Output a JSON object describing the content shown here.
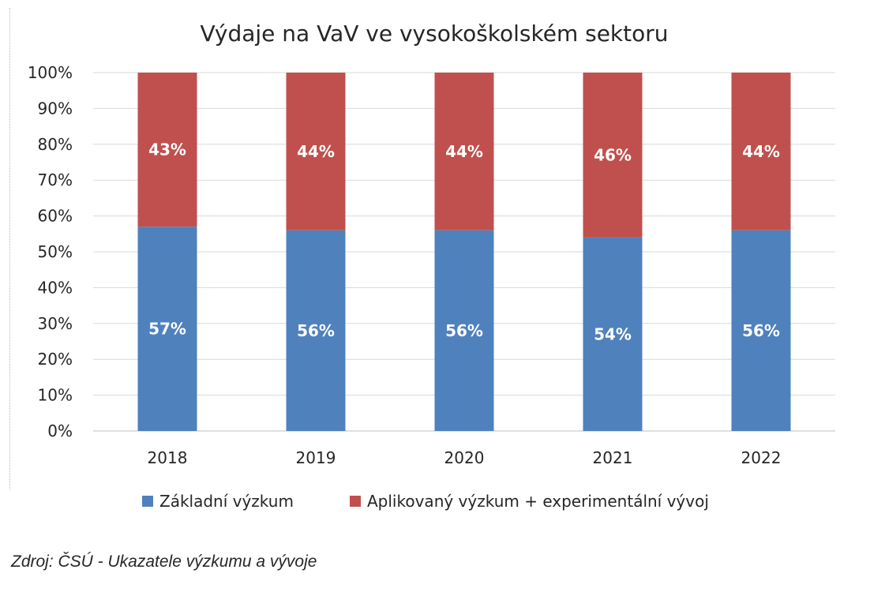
{
  "source_note": "Zdroj: ČSÚ - Ukazatele výzkumu a vývoje",
  "chart_data": {
    "type": "bar",
    "stacked": true,
    "title": "Výdaje na VaV ve vysokoškolském sektoru",
    "categories": [
      "2018",
      "2019",
      "2020",
      "2021",
      "2022"
    ],
    "series": [
      {
        "name": "Základní výzkum",
        "color": "#4f81bd",
        "values": [
          57,
          56,
          56,
          54,
          56
        ],
        "labels": [
          "57%",
          "56%",
          "56%",
          "54%",
          "56%"
        ]
      },
      {
        "name": "Aplikovaný výzkum + experimentální vývoj",
        "color": "#c0504d",
        "values": [
          43,
          44,
          44,
          46,
          44
        ],
        "labels": [
          "43%",
          "44%",
          "44%",
          "46%",
          "44%"
        ]
      }
    ],
    "ylim": [
      0,
      100
    ],
    "yticks": [
      "0%",
      "10%",
      "20%",
      "30%",
      "40%",
      "50%",
      "60%",
      "70%",
      "80%",
      "90%",
      "100%"
    ],
    "grid": true,
    "legend_position": "bottom"
  }
}
